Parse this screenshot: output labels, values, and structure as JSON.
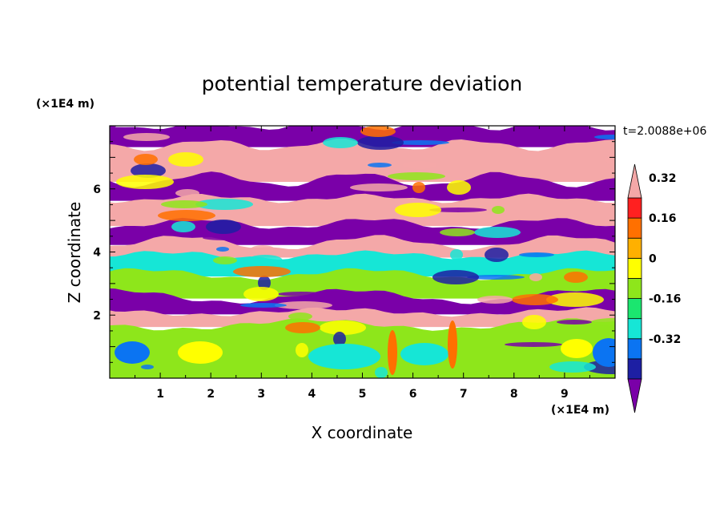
{
  "chart_data": {
    "type": "heatmap",
    "title": "potential temperature deviation",
    "xlabel": "X coordinate",
    "ylabel": "Z coordinate",
    "x_unit": "(×1E4 m)",
    "y_unit": "(×1E4 m)",
    "time_label": "t=2.0088e+06",
    "xlim": [
      0,
      10
    ],
    "ylim": [
      0,
      8
    ],
    "x_ticks": [
      "1",
      "2",
      "3",
      "4",
      "5",
      "6",
      "7",
      "8",
      "9"
    ],
    "y_ticks": [
      "2",
      "4",
      "6"
    ],
    "colorbar": {
      "levels": [
        "-0.32",
        "-0.16",
        "0",
        "0.16",
        "0.32"
      ],
      "colors": [
        "#7a00a8",
        "#1d1fa3",
        "#0b74f2",
        "#16e6d6",
        "#1be66f",
        "#8ee61b",
        "#ffff00",
        "#ffb000",
        "#ff7000",
        "#ff2020",
        "#f4a8a8"
      ]
    },
    "bands": [
      {
        "from": 7.4,
        "to": 8.0,
        "color": "#7a00a8"
      },
      {
        "from": 6.3,
        "to": 7.4,
        "color": "#f4a8a8"
      },
      {
        "from": 5.7,
        "to": 6.3,
        "color": "#7a00a8"
      },
      {
        "from": 4.9,
        "to": 5.7,
        "color": "#f4a8a8"
      },
      {
        "from": 4.3,
        "to": 4.9,
        "color": "#7a00a8"
      },
      {
        "from": 3.9,
        "to": 4.3,
        "color": "#f4a8a8"
      },
      {
        "from": 3.3,
        "to": 3.9,
        "color": "#16e6d6"
      },
      {
        "from": 2.6,
        "to": 3.3,
        "color": "#8ee61b"
      },
      {
        "from": 2.1,
        "to": 2.6,
        "color": "#7a00a8"
      },
      {
        "from": 1.7,
        "to": 2.1,
        "color": "#f4a8a8"
      },
      {
        "from": 0.0,
        "to": 1.7,
        "color": "#8ee61b"
      }
    ]
  }
}
